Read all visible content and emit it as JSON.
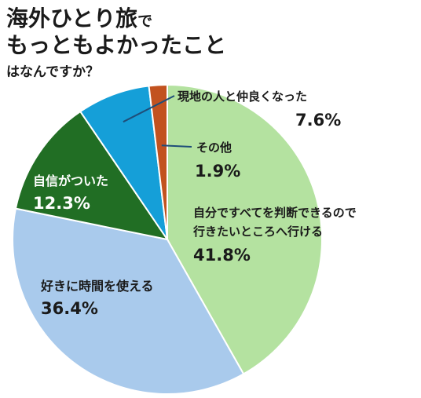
{
  "title": {
    "line1_main": "海外ひとり旅",
    "line1_tail": "で",
    "line2": "もっともよかったこと",
    "line3": "はなんですか？"
  },
  "chart_data": {
    "type": "pie",
    "title": "海外ひとり旅でもっともよかったことはなんですか？",
    "slices": [
      {
        "label_lines": [
          "自分ですべてを判断できるので",
          "行きたいところへ行ける"
        ],
        "value": 41.8,
        "value_text": "41.8%",
        "color": "#b4e2a0"
      },
      {
        "label_lines": [
          "好きに時間を使える"
        ],
        "value": 36.4,
        "value_text": "36.4%",
        "color": "#a9caec"
      },
      {
        "label_lines": [
          "自信がついた"
        ],
        "value": 12.3,
        "value_text": "12.3%",
        "color": "#216e24"
      },
      {
        "label_lines": [
          "現地の人と仲良くなった"
        ],
        "value": 7.6,
        "value_text": "7.6%",
        "color": "#159fd8"
      },
      {
        "label_lines": [
          "その他"
        ],
        "value": 1.9,
        "value_text": "1.9%",
        "color": "#c2521f"
      }
    ],
    "start_angle": "12 o'clock",
    "direction": "clockwise",
    "legend": "none",
    "leader_line_color": "#1f4e79"
  }
}
